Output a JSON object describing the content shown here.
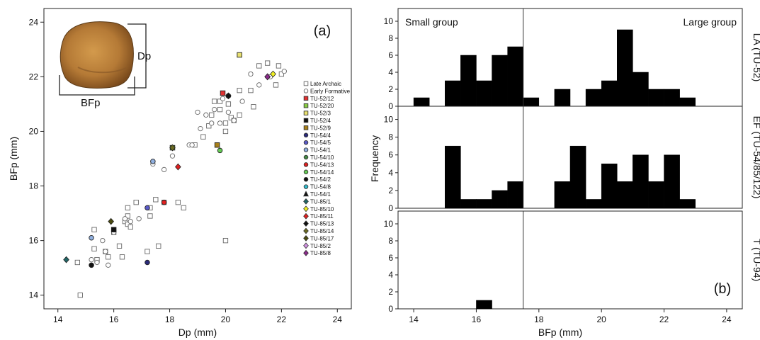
{
  "chart_data": [
    {
      "type": "scatter",
      "panel_label": "(a)",
      "xlabel": "Dp (mm)",
      "ylabel": "BFp (mm)",
      "xlim": [
        13.5,
        24.5
      ],
      "ylim": [
        13.5,
        24.5
      ],
      "x_ticks": [
        "14",
        "16",
        "18",
        "20",
        "22",
        "24"
      ],
      "y_ticks": [
        "14",
        "16",
        "18",
        "20",
        "22",
        "24"
      ],
      "inset_labels": {
        "dp": "Dp",
        "bfp": "BFp"
      },
      "legend": [
        {
          "label": "Late Archaic",
          "marker": "square-open",
          "color": "#666666"
        },
        {
          "label": "Early Formative",
          "marker": "circle-open",
          "color": "#666666"
        },
        {
          "label": "TU-52/12",
          "marker": "square",
          "color": "#e03030"
        },
        {
          "label": "TU-52/20",
          "marker": "square",
          "color": "#88cc44"
        },
        {
          "label": "TU-52/3",
          "marker": "square",
          "color": "#e8e070"
        },
        {
          "label": "TU-52/4",
          "marker": "square",
          "color": "#111111"
        },
        {
          "label": "TU-52/9",
          "marker": "square",
          "color": "#a8801a"
        },
        {
          "label": "TU-54/4",
          "marker": "circle",
          "color": "#2a2a7a"
        },
        {
          "label": "TU-54/5",
          "marker": "circle",
          "color": "#5a5ac8"
        },
        {
          "label": "TU-54/1",
          "marker": "circle",
          "color": "#90b0e0"
        },
        {
          "label": "TU-54/10",
          "marker": "circle",
          "color": "#448844"
        },
        {
          "label": "TU-54/13",
          "marker": "circle",
          "color": "#e02020"
        },
        {
          "label": "TU-54/14",
          "marker": "circle",
          "color": "#66cc55"
        },
        {
          "label": "TU-54/2",
          "marker": "circle",
          "color": "#111111"
        },
        {
          "label": "TU-54/8",
          "marker": "circle",
          "color": "#33bbcc"
        },
        {
          "label": "TU-54/1",
          "marker": "triangle",
          "color": "#111111"
        },
        {
          "label": "TU-85/1",
          "marker": "diamond",
          "color": "#226666"
        },
        {
          "label": "TU-85/10",
          "marker": "diamond",
          "color": "#eeee22"
        },
        {
          "label": "TU-85/11",
          "marker": "diamond",
          "color": "#e02020"
        },
        {
          "label": "TU-85/13",
          "marker": "diamond",
          "color": "#111111"
        },
        {
          "label": "TU-85/14",
          "marker": "diamond",
          "color": "#6b6b22"
        },
        {
          "label": "TU-85/17",
          "marker": "diamond",
          "color": "#4a4a10"
        },
        {
          "label": "TU-85/2",
          "marker": "diamond",
          "color": "#d090e0"
        },
        {
          "label": "TU-85/8",
          "marker": "diamond",
          "color": "#8a2a8a"
        }
      ],
      "series": [
        {
          "name": "Late Archaic",
          "points": [
            [
              14.8,
              14.0
            ],
            [
              14.7,
              15.2
            ],
            [
              15.3,
              16.4
            ],
            [
              15.3,
              15.7
            ],
            [
              15.4,
              15.3
            ],
            [
              15.7,
              15.6
            ],
            [
              15.8,
              15.4
            ],
            [
              16.0,
              16.3
            ],
            [
              16.2,
              15.8
            ],
            [
              16.3,
              15.4
            ],
            [
              16.4,
              16.7
            ],
            [
              16.5,
              16.6
            ],
            [
              16.6,
              16.5
            ],
            [
              16.5,
              16.9
            ],
            [
              16.5,
              17.2
            ],
            [
              16.8,
              17.4
            ],
            [
              17.3,
              16.9
            ],
            [
              17.5,
              17.5
            ],
            [
              17.8,
              17.4
            ],
            [
              18.3,
              17.4
            ],
            [
              18.5,
              17.2
            ],
            [
              17.2,
              15.6
            ],
            [
              17.6,
              15.8
            ],
            [
              20.0,
              16.0
            ],
            [
              17.3,
              17.2
            ],
            [
              18.9,
              19.5
            ],
            [
              19.2,
              19.8
            ],
            [
              19.4,
              20.2
            ],
            [
              19.5,
              20.6
            ],
            [
              19.6,
              21.1
            ],
            [
              19.8,
              21.1
            ],
            [
              19.8,
              20.8
            ],
            [
              20.0,
              20.3
            ],
            [
              20.2,
              20.5
            ],
            [
              20.1,
              21.0
            ],
            [
              20.3,
              20.4
            ],
            [
              20.5,
              20.6
            ],
            [
              20.5,
              21.5
            ],
            [
              20.9,
              21.5
            ],
            [
              21.0,
              20.9
            ],
            [
              21.2,
              22.4
            ],
            [
              21.5,
              22.5
            ],
            [
              21.8,
              21.7
            ],
            [
              21.9,
              22.4
            ],
            [
              22.0,
              22.1
            ],
            [
              20.0,
              20.0
            ]
          ]
        },
        {
          "name": "Early Formative",
          "points": [
            [
              15.2,
              15.3
            ],
            [
              15.4,
              15.2
            ],
            [
              15.7,
              15.6
            ],
            [
              15.8,
              15.1
            ],
            [
              15.6,
              16.0
            ],
            [
              16.0,
              16.3
            ],
            [
              16.4,
              16.8
            ],
            [
              16.6,
              16.7
            ],
            [
              16.9,
              16.8
            ],
            [
              17.4,
              18.8
            ],
            [
              17.8,
              18.6
            ],
            [
              18.1,
              19.1
            ],
            [
              18.7,
              19.5
            ],
            [
              18.8,
              19.5
            ],
            [
              19.0,
              20.7
            ],
            [
              19.1,
              20.1
            ],
            [
              19.3,
              20.6
            ],
            [
              19.5,
              20.3
            ],
            [
              19.6,
              20.8
            ],
            [
              19.8,
              20.3
            ],
            [
              20.1,
              20.7
            ],
            [
              20.3,
              20.4
            ],
            [
              20.6,
              21.1
            ],
            [
              20.9,
              22.1
            ],
            [
              21.2,
              21.7
            ],
            [
              21.6,
              22.0
            ],
            [
              22.1,
              22.2
            ],
            [
              19.9,
              21.2
            ]
          ]
        }
      ],
      "highlighted_points": [
        {
          "label": "TU-52/12",
          "x": 19.9,
          "y": 21.4
        },
        {
          "label": "TU-52/20",
          "x": 18.1,
          "y": 19.4
        },
        {
          "label": "TU-52/3",
          "x": 20.5,
          "y": 22.8
        },
        {
          "label": "TU-52/4",
          "x": 16.0,
          "y": 16.4
        },
        {
          "label": "TU-52/9",
          "x": 19.7,
          "y": 19.5
        },
        {
          "label": "TU-54/4",
          "x": 17.2,
          "y": 15.2
        },
        {
          "label": "TU-54/5",
          "x": 17.2,
          "y": 17.2
        },
        {
          "label": "TU-54/1",
          "x": 17.4,
          "y": 18.9
        },
        {
          "label": "TU-54/10",
          "x": 20.1,
          "y": 21.3
        },
        {
          "label": "TU-54/13",
          "x": 17.8,
          "y": 17.4
        },
        {
          "label": "TU-54/14",
          "x": 19.8,
          "y": 19.3
        },
        {
          "label": "TU-54/2",
          "x": 15.2,
          "y": 15.1
        },
        {
          "label": "TU-54/8",
          "x": 20.1,
          "y": 21.3
        },
        {
          "label": "TU-54/1",
          "x": 15.2,
          "y": 16.1
        },
        {
          "label": "TU-85/1",
          "x": 14.3,
          "y": 15.3
        },
        {
          "label": "TU-85/10",
          "x": 21.7,
          "y": 22.1
        },
        {
          "label": "TU-85/11",
          "x": 18.3,
          "y": 18.7
        },
        {
          "label": "TU-85/13",
          "x": 20.1,
          "y": 21.3
        },
        {
          "label": "TU-85/14",
          "x": 18.1,
          "y": 19.4
        },
        {
          "label": "TU-85/17",
          "x": 15.9,
          "y": 16.7
        },
        {
          "label": "TU-85/2",
          "x": 21.5,
          "y": 22.0
        },
        {
          "label": "TU-85/8",
          "x": 21.5,
          "y": 22.0
        }
      ]
    },
    {
      "type": "bar",
      "panel_label": "(b)",
      "xlabel": "BFp (mm)",
      "ylabel": "Frequency",
      "xlim": [
        13.5,
        24.5
      ],
      "ylim": [
        0,
        11
      ],
      "x_ticks": [
        "14",
        "16",
        "18",
        "20",
        "22",
        "24"
      ],
      "y_ticks": [
        "0",
        "2",
        "4",
        "6",
        "8",
        "10"
      ],
      "bin_width": 0.5,
      "divider_x": 17.5,
      "group_labels": {
        "small": "Small group",
        "large": "Large group"
      },
      "bin_starts": [
        14.0,
        14.5,
        15.0,
        15.5,
        16.0,
        16.5,
        17.0,
        17.5,
        18.0,
        18.5,
        19.0,
        19.5,
        20.0,
        20.5,
        21.0,
        21.5,
        22.0,
        22.5,
        23.0
      ],
      "series": [
        {
          "name": "LA (TU-52)",
          "values": [
            1,
            0,
            3,
            6,
            3,
            6,
            7,
            1,
            0,
            2,
            0,
            2,
            3,
            9,
            4,
            2,
            2,
            1,
            0
          ]
        },
        {
          "name": "EF (TU-54/85/122)",
          "values": [
            0,
            0,
            7,
            1,
            1,
            2,
            3,
            0,
            0,
            3,
            7,
            1,
            5,
            3,
            6,
            3,
            6,
            1,
            0
          ]
        },
        {
          "name": "T (TU-94)",
          "values": [
            0,
            0,
            0,
            0,
            1,
            0,
            0,
            0,
            0,
            0,
            0,
            0,
            0,
            0,
            0,
            0,
            0,
            0,
            0
          ]
        }
      ]
    }
  ]
}
